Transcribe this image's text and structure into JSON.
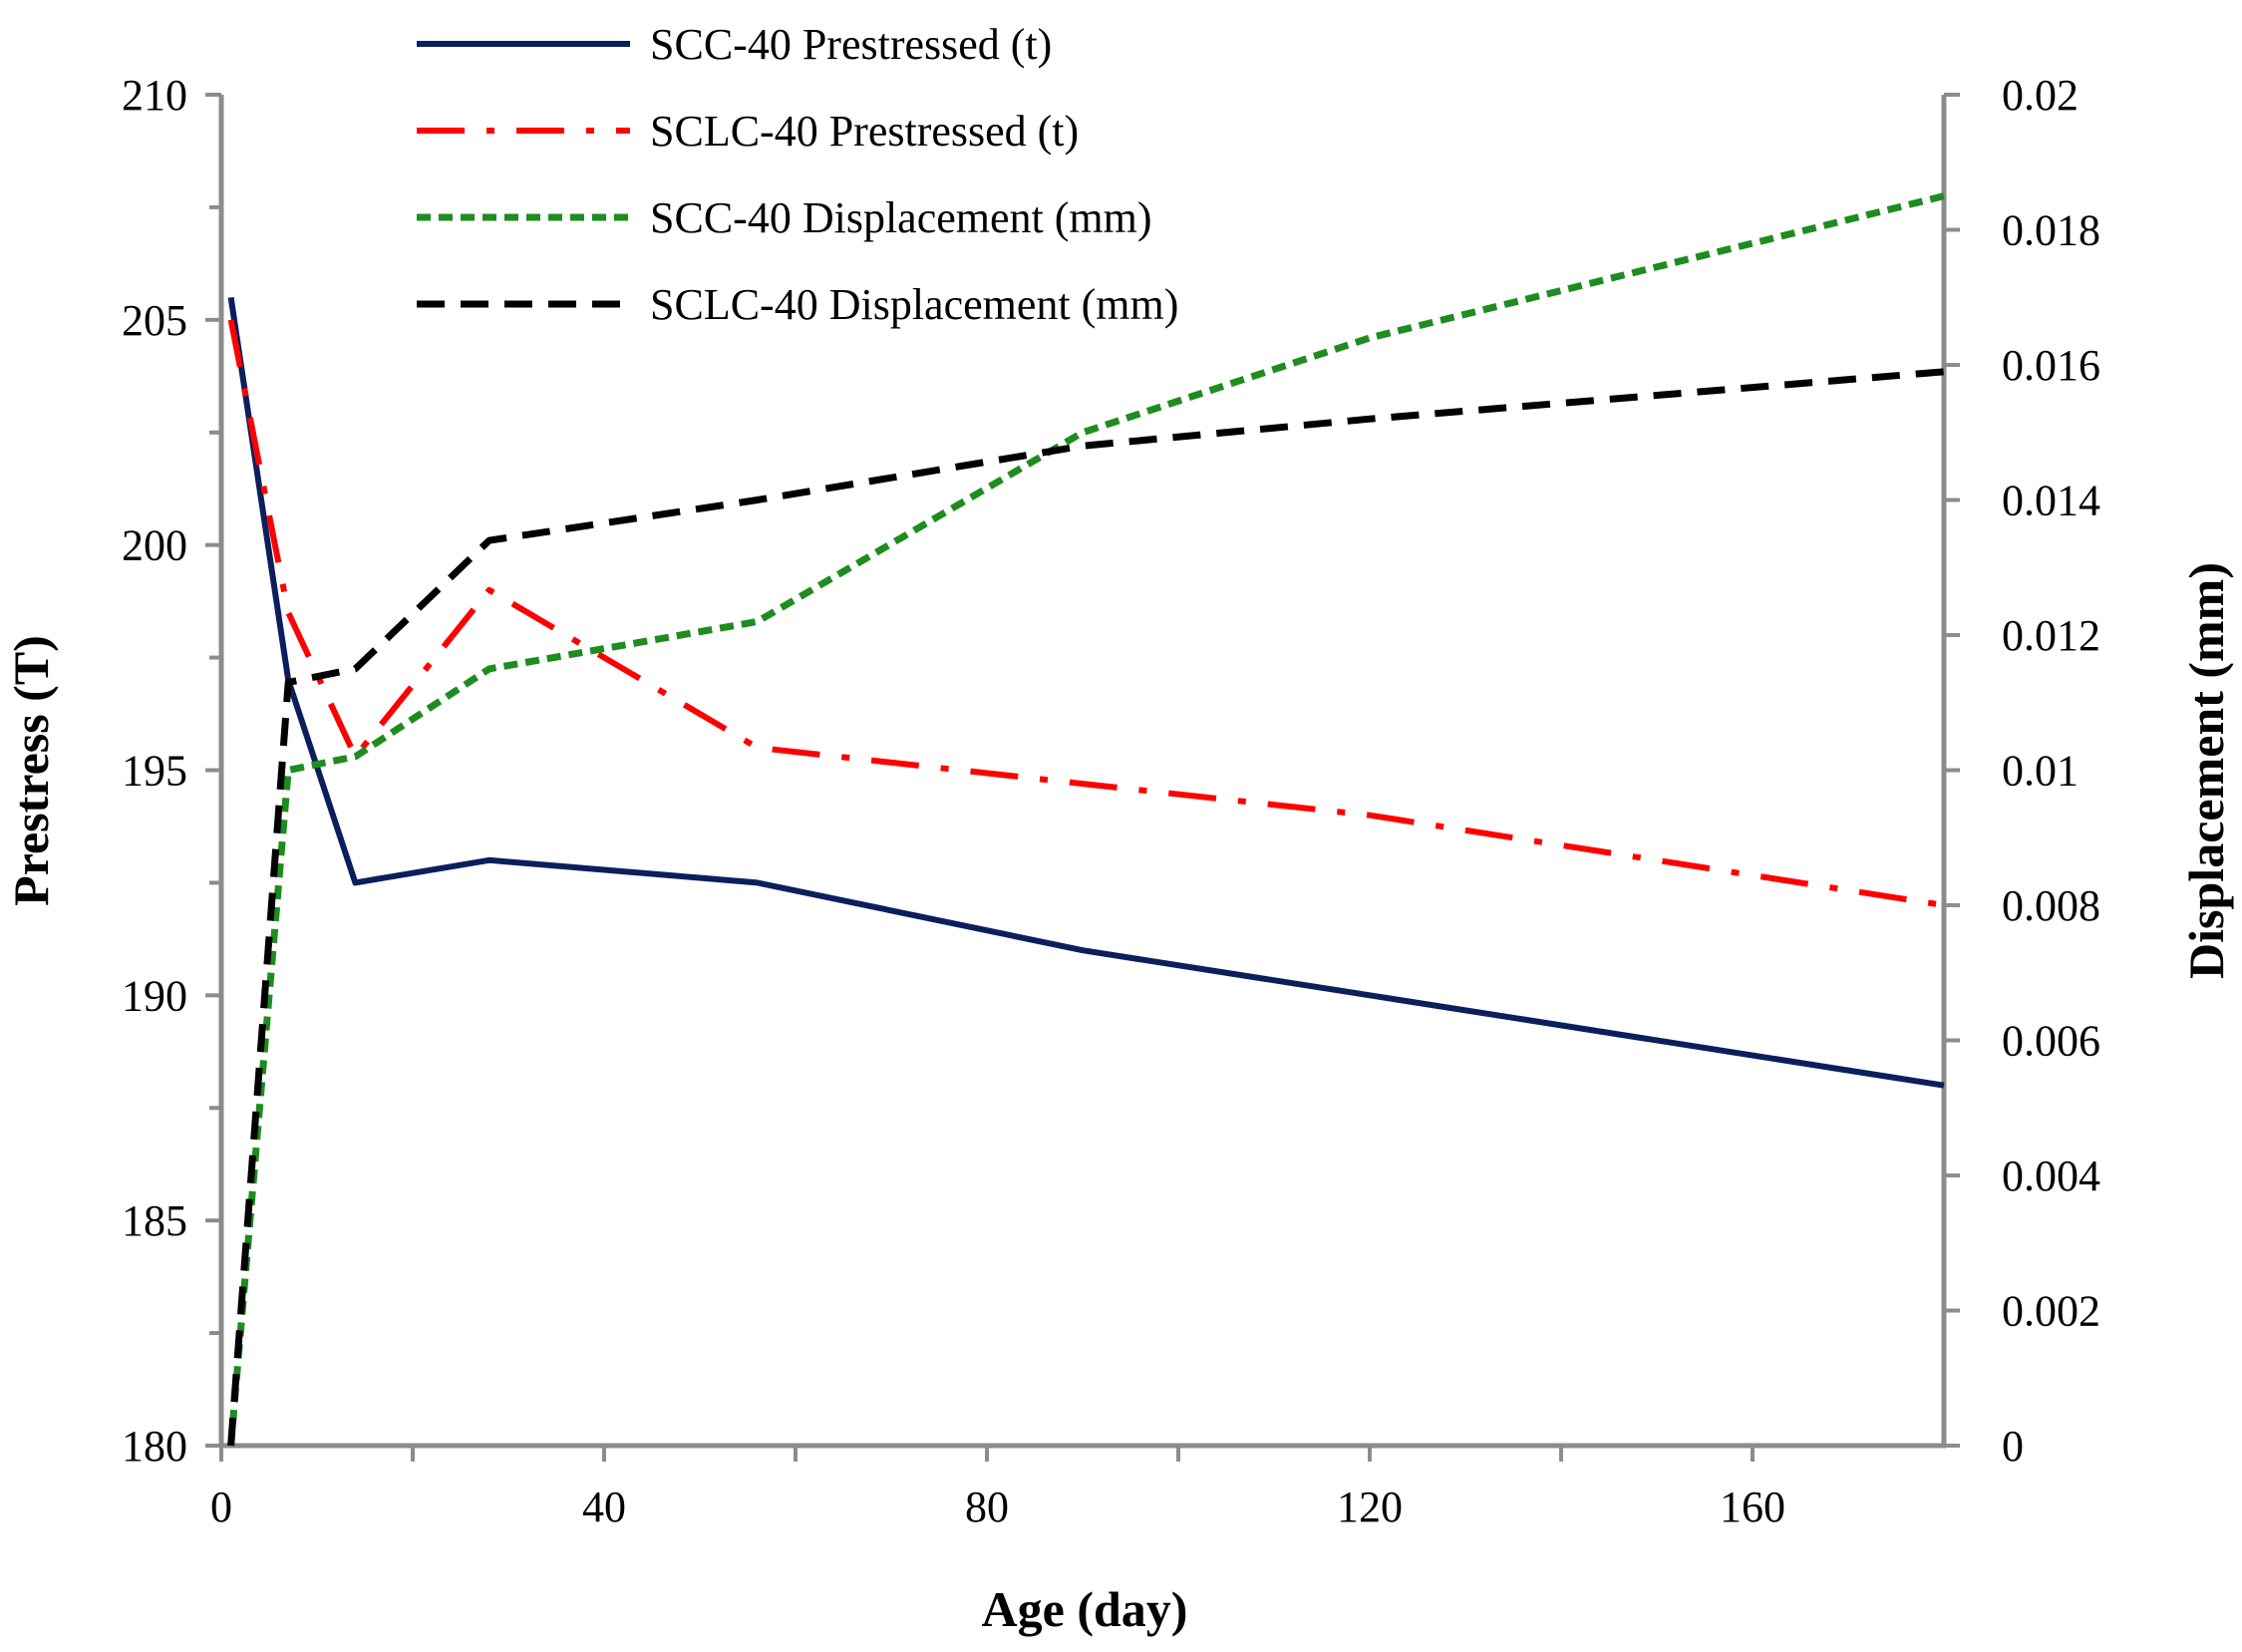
{
  "chart_data": {
    "type": "line",
    "title": "",
    "xlabel": "Age (day)",
    "ylabel": "Prestress (T)",
    "y2label": "Displacement (mm)",
    "xlim": [
      0,
      180
    ],
    "ylim": [
      180,
      210
    ],
    "y2lim": [
      0,
      0.02
    ],
    "xticks": [
      0,
      40,
      80,
      120,
      160
    ],
    "xtick_labels": [
      "0",
      "40",
      "80",
      "120",
      "160"
    ],
    "xminor_step": 20,
    "yticks": [
      180,
      185,
      190,
      195,
      200,
      205,
      210
    ],
    "ytick_labels": [
      "180",
      "185",
      "190",
      "195",
      "200",
      "205",
      "210"
    ],
    "yminor_step": 2.5,
    "y2ticks": [
      0,
      0.002,
      0.004,
      0.006,
      0.008,
      0.01,
      0.012,
      0.014,
      0.016,
      0.018,
      0.02
    ],
    "y2tick_labels": [
      "0",
      "0.002",
      "0.004",
      "0.006",
      "0.008",
      "0.01",
      "0.012",
      "0.014",
      "0.016",
      "0.018",
      "0.02"
    ],
    "grid": false,
    "legend_position": "top",
    "series": [
      {
        "name": "SCC-40 Prestressed (t)",
        "axis": "left",
        "color": "#0b1f5c",
        "style": "solid",
        "x": [
          1,
          7,
          14,
          28,
          56,
          90,
          120,
          180
        ],
        "y": [
          205.5,
          197,
          192.5,
          193,
          192.5,
          191,
          190,
          188
        ]
      },
      {
        "name": "SCLC-40 Prestressed (t)",
        "axis": "left",
        "color": "#ff0000",
        "style": "dashdot",
        "x": [
          1,
          7,
          14,
          28,
          56,
          90,
          120,
          180
        ],
        "y": [
          205,
          198.5,
          195.3,
          199,
          195.5,
          194.7,
          194,
          192
        ]
      },
      {
        "name": "SCC-40 Displacement (mm)",
        "axis": "right",
        "color": "#1e8c1e",
        "style": "dotted",
        "x": [
          1,
          7,
          14,
          28,
          56,
          90,
          120,
          180
        ],
        "y": [
          0,
          0.01,
          0.0102,
          0.0115,
          0.0122,
          0.015,
          0.0164,
          0.0185
        ]
      },
      {
        "name": "SCLC-40 Displacement (mm)",
        "axis": "right",
        "color": "#000000",
        "style": "dashed",
        "x": [
          1,
          7,
          14,
          28,
          56,
          90,
          120,
          180
        ],
        "y": [
          0,
          0.0113,
          0.0115,
          0.0134,
          0.014,
          0.0148,
          0.0152,
          0.0159
        ]
      }
    ]
  }
}
